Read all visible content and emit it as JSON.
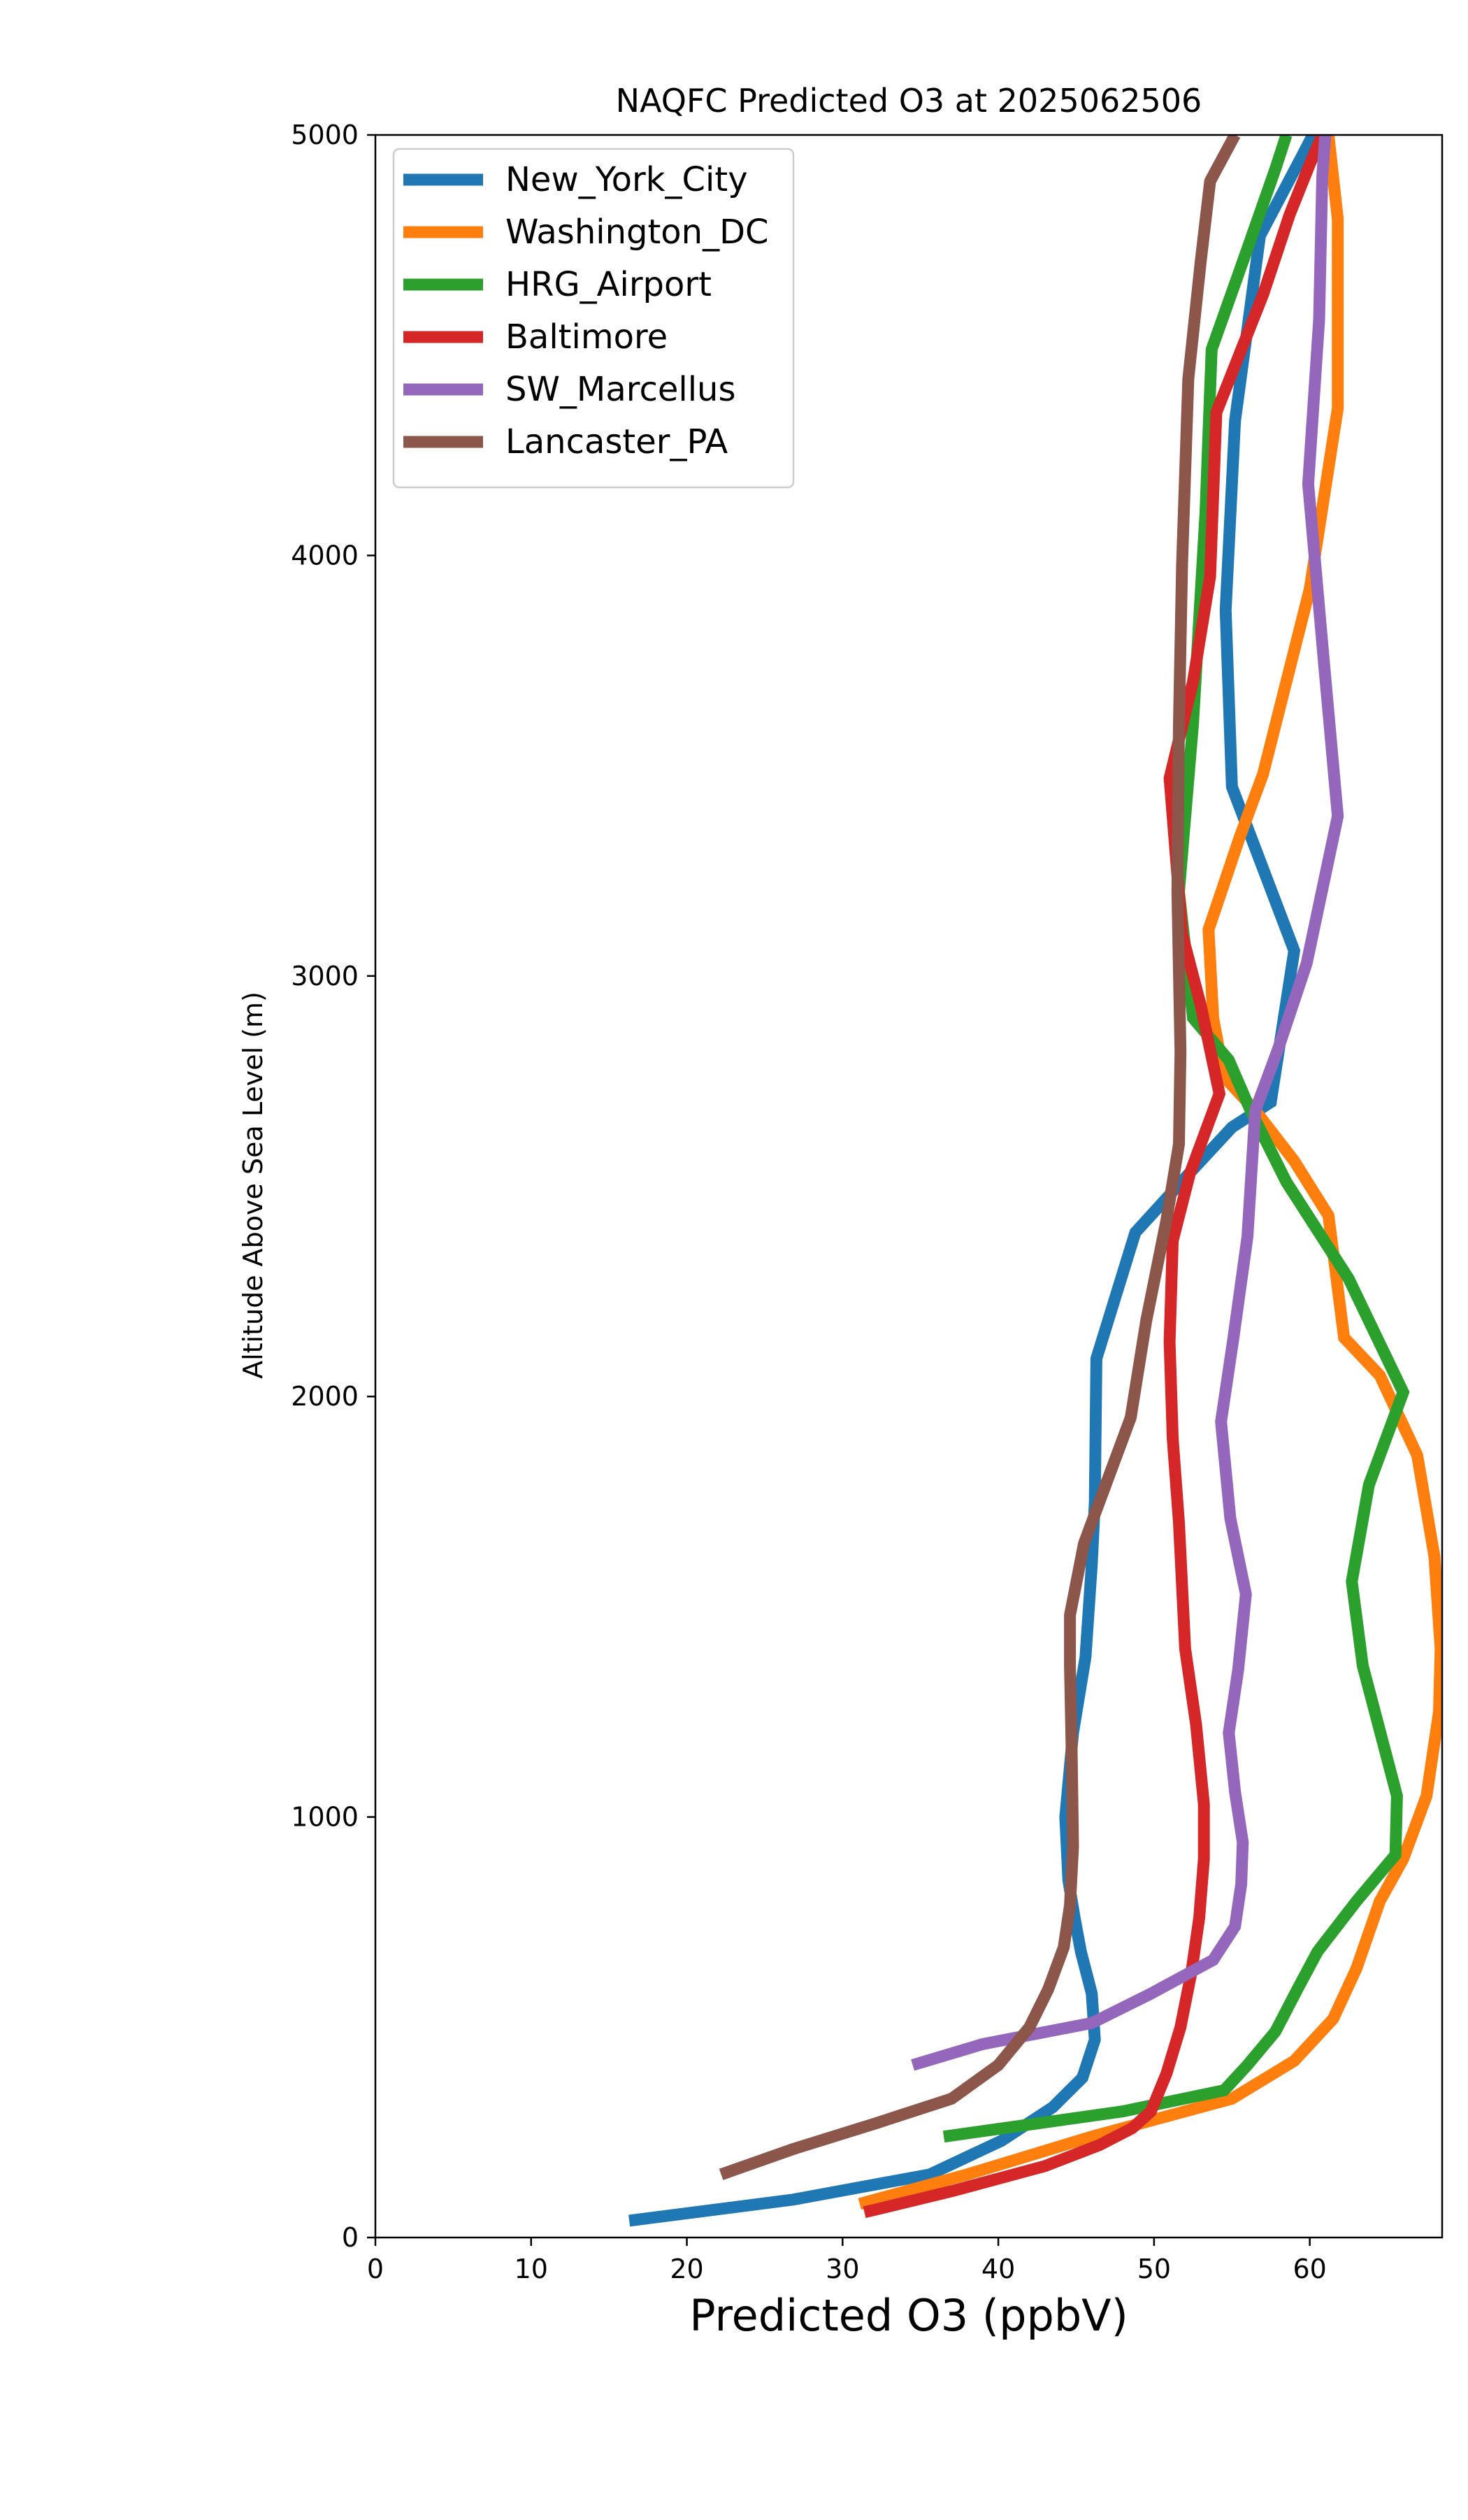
{
  "chart_data": {
    "type": "line",
    "title": "NAQFC Predicted O3 at 2025062506",
    "xlabel": "Predicted O3 (ppbV)",
    "ylabel": "Altitude Above Sea Level (m)",
    "xlim": [
      0,
      68.5
    ],
    "ylim": [
      0,
      5000
    ],
    "xticks": [
      0,
      10,
      20,
      30,
      40,
      50,
      60
    ],
    "yticks": [
      0,
      1000,
      2000,
      3000,
      4000,
      5000
    ],
    "grid": false,
    "legend_position": "upper-left",
    "series": [
      {
        "name": "New_York_City",
        "color": "#1f77b4",
        "points": [
          [
            16.3,
            40
          ],
          [
            26.8,
            90
          ],
          [
            35.6,
            150
          ],
          [
            40.2,
            230
          ],
          [
            43.5,
            310
          ],
          [
            45.4,
            380
          ],
          [
            46.2,
            470
          ],
          [
            46.0,
            580
          ],
          [
            45.3,
            680
          ],
          [
            44.9,
            760
          ],
          [
            44.5,
            850
          ],
          [
            44.3,
            1000
          ],
          [
            44.8,
            1200
          ],
          [
            45.6,
            1380
          ],
          [
            46.0,
            1600
          ],
          [
            46.2,
            1750
          ],
          [
            46.3,
            2090
          ],
          [
            48.8,
            2390
          ],
          [
            52.0,
            2520
          ],
          [
            55.0,
            2640
          ],
          [
            57.5,
            2700
          ],
          [
            59.0,
            3060
          ],
          [
            55.0,
            3450
          ],
          [
            54.6,
            3870
          ],
          [
            55.2,
            4320
          ],
          [
            56.8,
            4760
          ],
          [
            59.5,
            4950
          ],
          [
            60.2,
            5000
          ]
        ]
      },
      {
        "name": "Washington_DC",
        "color": "#ff7f0e",
        "points": [
          [
            31.1,
            80
          ],
          [
            38.0,
            150
          ],
          [
            46.0,
            240
          ],
          [
            55.0,
            330
          ],
          [
            59.0,
            420
          ],
          [
            61.5,
            520
          ],
          [
            63.0,
            640
          ],
          [
            64.5,
            800
          ],
          [
            66.0,
            900
          ],
          [
            67.5,
            1050
          ],
          [
            68.3,
            1250
          ],
          [
            68.4,
            1400
          ],
          [
            68.0,
            1620
          ],
          [
            66.9,
            1860
          ],
          [
            64.5,
            2050
          ],
          [
            62.2,
            2140
          ],
          [
            61.2,
            2430
          ],
          [
            59.0,
            2560
          ],
          [
            56.5,
            2680
          ],
          [
            54.5,
            2760
          ],
          [
            53.8,
            2900
          ],
          [
            53.5,
            3110
          ],
          [
            55.5,
            3330
          ],
          [
            57.0,
            3480
          ],
          [
            60.0,
            3920
          ],
          [
            61.8,
            4350
          ],
          [
            61.8,
            4800
          ],
          [
            61.2,
            5000
          ]
        ]
      },
      {
        "name": "HRG_Airport",
        "color": "#2ca02c",
        "points": [
          [
            36.5,
            240
          ],
          [
            48.0,
            300
          ],
          [
            54.5,
            350
          ],
          [
            56.0,
            410
          ],
          [
            57.8,
            490
          ],
          [
            59.2,
            590
          ],
          [
            60.5,
            680
          ],
          [
            63.0,
            800
          ],
          [
            65.5,
            910
          ],
          [
            65.6,
            1050
          ],
          [
            63.4,
            1360
          ],
          [
            62.7,
            1560
          ],
          [
            63.8,
            1790
          ],
          [
            66.0,
            2010
          ],
          [
            62.5,
            2280
          ],
          [
            58.5,
            2510
          ],
          [
            56.2,
            2680
          ],
          [
            54.8,
            2800
          ],
          [
            52.5,
            2900
          ],
          [
            51.6,
            3200
          ],
          [
            52.5,
            3600
          ],
          [
            53.3,
            4100
          ],
          [
            53.7,
            4490
          ],
          [
            56.0,
            4730
          ],
          [
            57.8,
            4920
          ],
          [
            58.5,
            5000
          ]
        ]
      },
      {
        "name": "Baltimore",
        "color": "#d62728",
        "points": [
          [
            31.4,
            60
          ],
          [
            37.0,
            110
          ],
          [
            43.0,
            170
          ],
          [
            46.5,
            220
          ],
          [
            48.6,
            260
          ],
          [
            49.8,
            300
          ],
          [
            50.8,
            390
          ],
          [
            51.7,
            500
          ],
          [
            52.4,
            630
          ],
          [
            52.9,
            760
          ],
          [
            53.2,
            900
          ],
          [
            53.2,
            1030
          ],
          [
            52.7,
            1220
          ],
          [
            52.0,
            1400
          ],
          [
            51.6,
            1700
          ],
          [
            51.2,
            1900
          ],
          [
            51.0,
            2130
          ],
          [
            51.2,
            2370
          ],
          [
            52.3,
            2530
          ],
          [
            54.2,
            2720
          ],
          [
            53.0,
            2930
          ],
          [
            51.8,
            3100
          ],
          [
            51.0,
            3470
          ],
          [
            52.5,
            3700
          ],
          [
            53.6,
            3950
          ],
          [
            54.0,
            4340
          ],
          [
            57.0,
            4620
          ],
          [
            58.7,
            4810
          ],
          [
            60.0,
            4930
          ],
          [
            60.8,
            5000
          ]
        ]
      },
      {
        "name": "SW_Marcellus",
        "color": "#9467bd",
        "points": [
          [
            34.5,
            410
          ],
          [
            39.0,
            460
          ],
          [
            46.0,
            510
          ],
          [
            49.8,
            580
          ],
          [
            53.8,
            660
          ],
          [
            55.2,
            740
          ],
          [
            55.6,
            840
          ],
          [
            55.7,
            940
          ],
          [
            55.2,
            1060
          ],
          [
            54.8,
            1200
          ],
          [
            55.4,
            1350
          ],
          [
            55.9,
            1530
          ],
          [
            54.9,
            1710
          ],
          [
            54.3,
            1940
          ],
          [
            55.1,
            2140
          ],
          [
            56.0,
            2380
          ],
          [
            56.5,
            2680
          ],
          [
            58.0,
            2830
          ],
          [
            59.8,
            3030
          ],
          [
            61.8,
            3380
          ],
          [
            60.9,
            3750
          ],
          [
            59.9,
            4170
          ],
          [
            60.6,
            4560
          ],
          [
            60.8,
            4900
          ],
          [
            61.0,
            5000
          ]
        ]
      },
      {
        "name": "Lancaster_PA",
        "color": "#8c564b",
        "points": [
          [
            22.2,
            150
          ],
          [
            26.8,
            210
          ],
          [
            32.0,
            270
          ],
          [
            37.0,
            330
          ],
          [
            40.0,
            410
          ],
          [
            42.0,
            500
          ],
          [
            43.2,
            590
          ],
          [
            44.2,
            690
          ],
          [
            44.6,
            790
          ],
          [
            44.8,
            930
          ],
          [
            44.7,
            1180
          ],
          [
            44.6,
            1360
          ],
          [
            44.6,
            1480
          ],
          [
            45.5,
            1650
          ],
          [
            47.0,
            1800
          ],
          [
            48.5,
            1950
          ],
          [
            49.5,
            2180
          ],
          [
            50.8,
            2420
          ],
          [
            51.6,
            2600
          ],
          [
            51.7,
            2820
          ],
          [
            51.5,
            3200
          ],
          [
            51.6,
            3600
          ],
          [
            51.8,
            3980
          ],
          [
            52.2,
            4420
          ],
          [
            53.0,
            4700
          ],
          [
            53.6,
            4890
          ],
          [
            55.2,
            5000
          ]
        ]
      }
    ]
  }
}
